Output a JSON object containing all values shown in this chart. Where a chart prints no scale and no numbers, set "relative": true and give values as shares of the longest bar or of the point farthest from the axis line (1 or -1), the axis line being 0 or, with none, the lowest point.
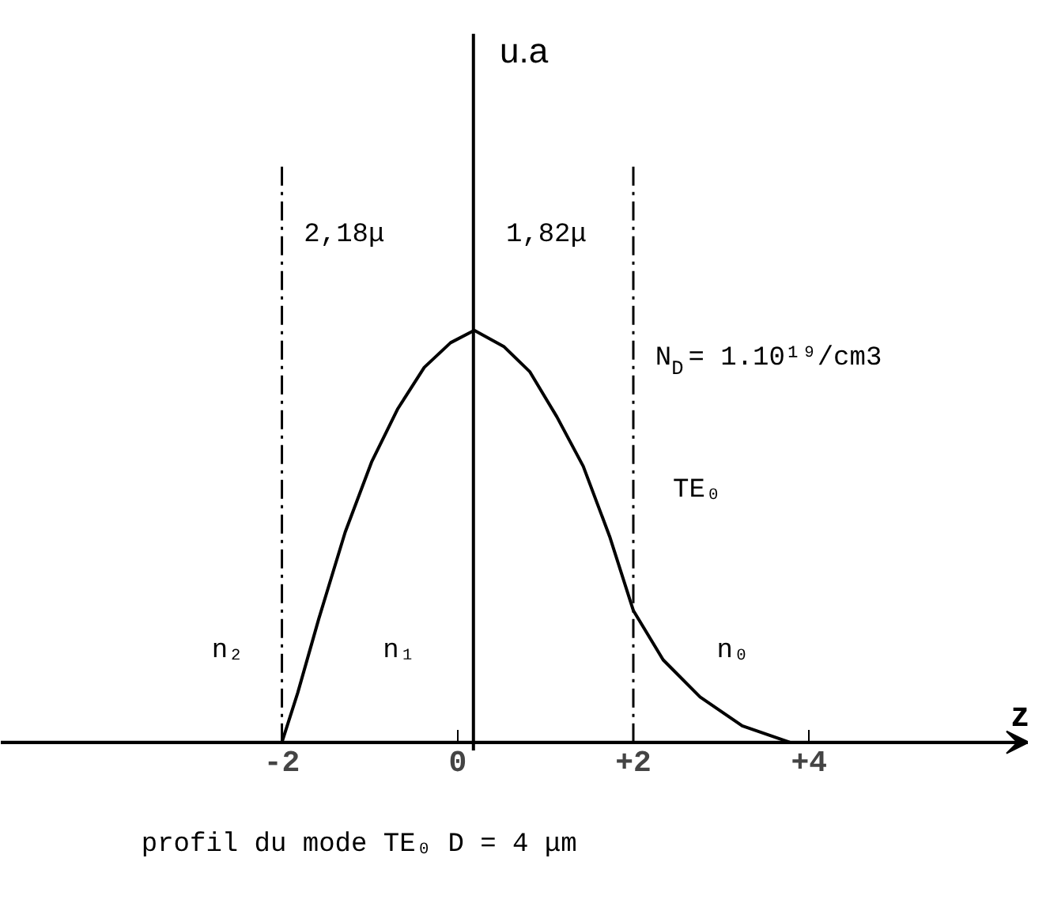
{
  "chart_data": {
    "type": "line",
    "relative": true,
    "xlabel": "z",
    "x": [
      -2,
      -1.82,
      -1.58,
      -1.28,
      -0.98,
      -0.68,
      -0.38,
      -0.08,
      0.19,
      0.53,
      0.82,
      1.13,
      1.43,
      1.73,
      2.0,
      2.34,
      2.76,
      3.24,
      3.78
    ],
    "series": [
      {
        "color": "#000000",
        "values": [
          0,
          0.12,
          0.3,
          0.51,
          0.68,
          0.81,
          0.91,
          0.97,
          1.0,
          0.96,
          0.9,
          0.79,
          0.67,
          0.5,
          0.32,
          0.2,
          0.11,
          0.04,
          0
        ]
      }
    ],
    "xlim": [
      -5.2,
      6.5
    ],
    "xticks": [
      {
        "value": -2,
        "label": "-2"
      },
      0,
      {
        "value": 2,
        "label": "+2"
      },
      {
        "value": 4,
        "label": "+4"
      }
    ],
    "grid": false,
    "marker": "none",
    "line_style": "solid",
    "ref_lines": [
      {
        "axis": "x",
        "value": -2,
        "line_style": "dashed"
      },
      {
        "axis": "x",
        "value": 2,
        "line_style": "dashed"
      },
      {
        "axis": "x",
        "value": 0.18,
        "line_style": "solid",
        "label": "u.a"
      }
    ],
    "annotations": [
      "2,18μ",
      "1,82μ",
      "N$_{D}$ = 1.10¹⁹/cm3",
      "TE₀",
      "n₂",
      "n₁",
      "n₀",
      "profil du mode TE₀   D = 4 μm"
    ]
  }
}
